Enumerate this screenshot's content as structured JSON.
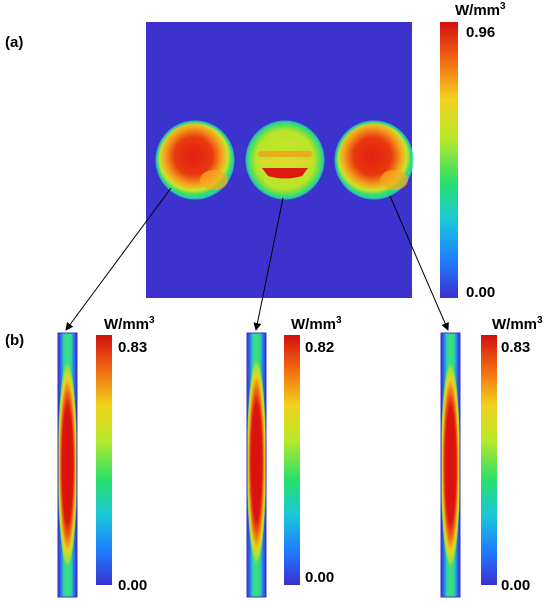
{
  "panels": {
    "a": {
      "label": "(a)",
      "colorbar": {
        "unit": "W/mm",
        "unit_superscript": "3",
        "max": "0.96",
        "min": "0.00"
      }
    },
    "b": {
      "label": "(b)",
      "profiles": [
        {
          "unit": "W/mm",
          "unit_superscript": "3",
          "max": "0.83",
          "min": "0.00"
        },
        {
          "unit": "W/mm",
          "unit_superscript": "3",
          "max": "0.82",
          "min": "0.00"
        },
        {
          "unit": "W/mm",
          "unit_superscript": "3",
          "max": "0.83",
          "min": "0.00"
        }
      ]
    }
  },
  "colormap": [
    "#3a2fd0",
    "#1f7fff",
    "#19c7d9",
    "#28e06a",
    "#b9e82a",
    "#f2d21c",
    "#f26b12",
    "#d40f0f"
  ]
}
